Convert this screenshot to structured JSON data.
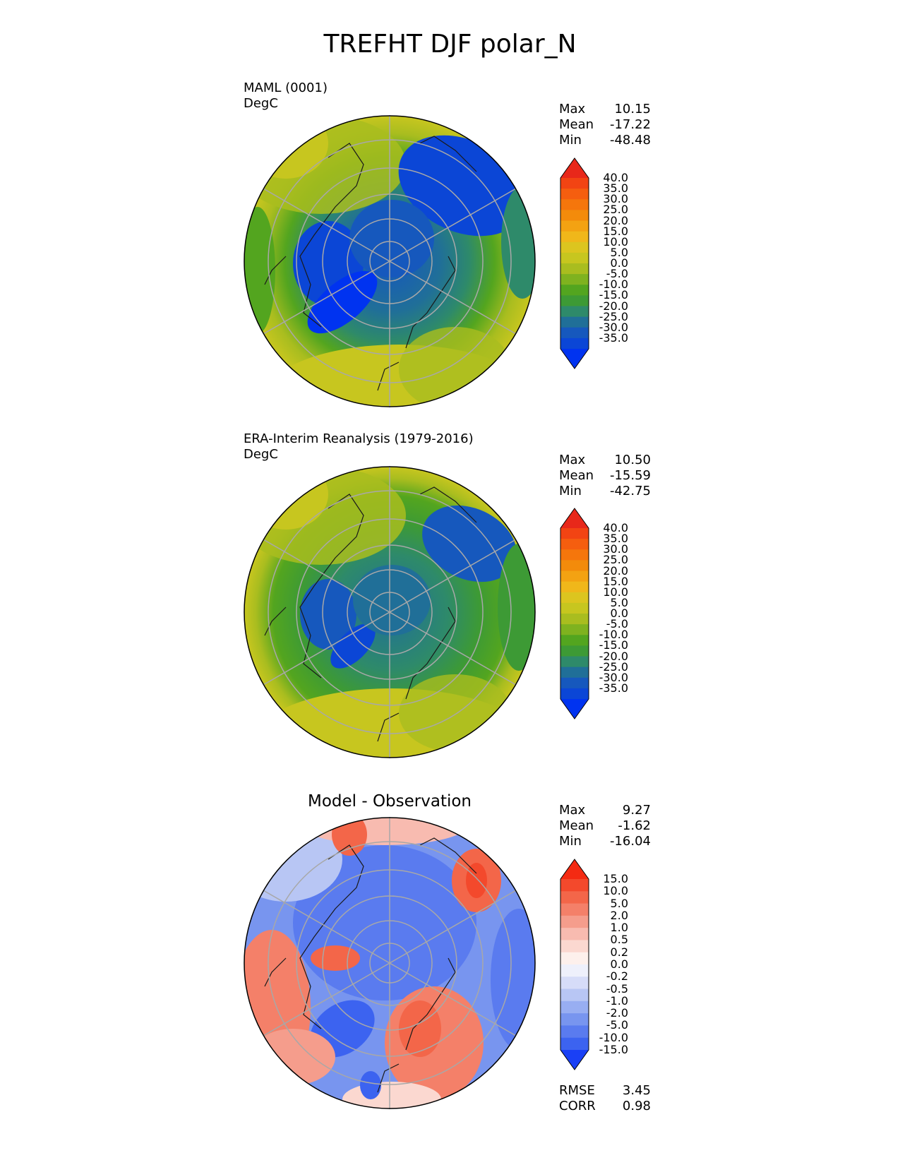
{
  "figure": {
    "title": "TREFHT DJF polar_N"
  },
  "chart_data": [
    {
      "type": "heatmap",
      "projection": "north-polar-stereographic",
      "title": "MAML (0001)",
      "units": "DegC",
      "stats": {
        "Max": "10.15",
        "Mean": "-17.22",
        "Min": "-48.48"
      },
      "colorbar": {
        "levels": [
          "40.0",
          "35.0",
          "30.0",
          "25.0",
          "20.0",
          "15.0",
          "10.0",
          "5.0",
          "0.0",
          "-5.0",
          "-10.0",
          "-15.0",
          "-20.0",
          "-25.0",
          "-30.0",
          "-35.0"
        ],
        "colors": [
          "#e8281a",
          "#f24413",
          "#f55e0f",
          "#f5760c",
          "#f38b0b",
          "#f3a212",
          "#f0b71a",
          "#dcc51f",
          "#c7c61f",
          "#a9bd1f",
          "#7fb21f",
          "#53a51f",
          "#3d9a35",
          "#2e8a6a",
          "#206f98",
          "#1658bd",
          "#0b46d6",
          "#0033f0"
        ],
        "extend": "both"
      }
    },
    {
      "type": "heatmap",
      "projection": "north-polar-stereographic",
      "title": "ERA-Interim Reanalysis (1979-2016)",
      "units": "DegC",
      "stats": {
        "Max": "10.50",
        "Mean": "-15.59",
        "Min": "-42.75"
      },
      "colorbar": {
        "levels": [
          "40.0",
          "35.0",
          "30.0",
          "25.0",
          "20.0",
          "15.0",
          "10.0",
          "5.0",
          "0.0",
          "-5.0",
          "-10.0",
          "-15.0",
          "-20.0",
          "-25.0",
          "-30.0",
          "-35.0"
        ],
        "colors": [
          "#e8281a",
          "#f24413",
          "#f55e0f",
          "#f5760c",
          "#f38b0b",
          "#f3a212",
          "#f0b71a",
          "#dcc51f",
          "#c7c61f",
          "#a9bd1f",
          "#7fb21f",
          "#53a51f",
          "#3d9a35",
          "#2e8a6a",
          "#206f98",
          "#1658bd",
          "#0b46d6",
          "#0033f0"
        ],
        "extend": "both"
      }
    },
    {
      "type": "heatmap",
      "projection": "north-polar-stereographic",
      "title": "Model - Observation",
      "units": "",
      "stats": {
        "Max": "9.27",
        "Mean": "-1.62",
        "Min": "-16.04"
      },
      "metrics": {
        "RMSE": "3.45",
        "CORR": "0.98"
      },
      "colorbar": {
        "levels": [
          "15.0",
          "10.0",
          "5.0",
          "2.0",
          "1.0",
          "0.5",
          "0.2",
          "0.0",
          "-0.2",
          "-0.5",
          "-1.0",
          "-2.0",
          "-5.0",
          "-10.0",
          "-15.0"
        ],
        "colors": [
          "#f42a12",
          "#f3492c",
          "#f36649",
          "#f48069",
          "#f59d8c",
          "#f8bbb0",
          "#fbd8d0",
          "#fdf0ec",
          "#eef0fb",
          "#d6dcf8",
          "#b8c6f4",
          "#98aef2",
          "#7895ef",
          "#5a7bef",
          "#3c63f0",
          "#1a40f5"
        ],
        "extend": "both"
      }
    }
  ]
}
